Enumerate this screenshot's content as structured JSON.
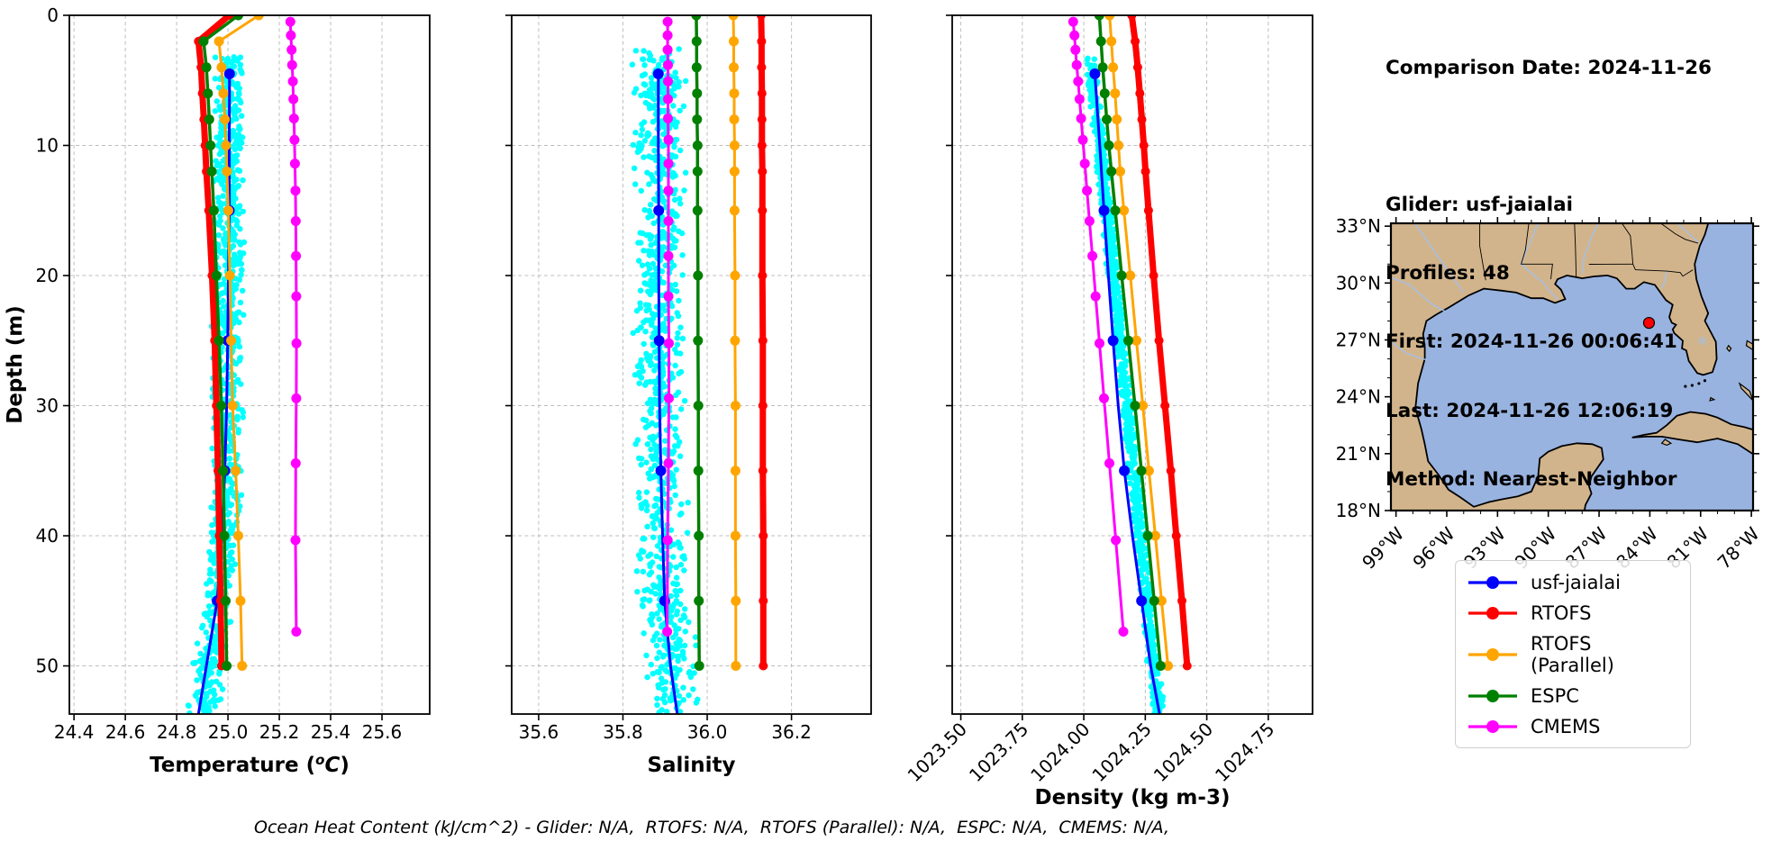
{
  "info_panel": {
    "comparison_date": "Comparison Date: 2024-11-26",
    "glider": "Glider: usf-jaialai",
    "profiles": "Profiles: 48",
    "first": "First: 2024-11-26 00:06:41",
    "last": "Last: 2024-11-26 12:06:19",
    "method": "Method: Nearest-Neighbor"
  },
  "footnote": "Ocean Heat Content (kJ/cm^2) - Glider: N/A,  RTOFS: N/A,  RTOFS (Parallel): N/A,  ESPC: N/A,  CMEMS: N/A,",
  "legend": {
    "items": [
      {
        "label": "usf-jaialai",
        "color": "#0000ff"
      },
      {
        "label": "RTOFS",
        "color": "#ff0000"
      },
      {
        "label": "RTOFS (Parallel)",
        "color": "#ffa500"
      },
      {
        "label": "ESPC",
        "color": "#008000"
      },
      {
        "label": "CMEMS",
        "color": "#ff00ff"
      }
    ]
  },
  "map": {
    "lat_ticks": [
      33,
      30,
      27,
      24,
      21,
      18
    ],
    "lat_labels": [
      "33°N",
      "30°N",
      "27°N",
      "24°N",
      "21°N",
      "18°N"
    ],
    "lon_ticks": [
      -99,
      -96,
      -93,
      -90,
      -87,
      -84,
      -81,
      -78
    ],
    "lon_labels": [
      "99°W",
      "96°W",
      "93°W",
      "90°W",
      "87°W",
      "84°W",
      "81°W",
      "78°W"
    ],
    "land_color": "#d2b48c",
    "ocean_color": "#99b3e0",
    "lake_color": "#b9b9b9",
    "river_color": "#a3c0e8",
    "marker": {
      "lat": 27.9,
      "lon": -84.05,
      "color": "#ff0000"
    }
  },
  "chart_data": [
    {
      "type": "line",
      "xlabel": "Temperature (°C)",
      "xlabel_parts": {
        "pre": "Temperature (",
        "sup": "o",
        "italic": "C",
        "post": ")"
      },
      "ylabel": "Depth (m)",
      "xlim": [
        24.382,
        25.786
      ],
      "ylim": [
        0,
        53.7
      ],
      "xticks": [
        24.4,
        24.6,
        24.8,
        25.0,
        25.2,
        25.4,
        25.6
      ],
      "xtick_labels": [
        "24.4",
        "24.6",
        "24.8",
        "25.0",
        "25.2",
        "25.4",
        "25.6"
      ],
      "yticks": [
        0,
        10,
        20,
        30,
        40,
        50
      ],
      "ytick_labels": [
        "0",
        "10",
        "20",
        "30",
        "40",
        "50"
      ],
      "scatter": {
        "name": "glider-raw-points",
        "color": "#00ffff",
        "n": 900,
        "depth_range": [
          3.2,
          53.7
        ],
        "half_width": 0.058,
        "center": [
          [
            3,
            25.008
          ],
          [
            20,
            25.003
          ],
          [
            35,
            24.995
          ],
          [
            45,
            24.962
          ],
          [
            53.7,
            24.9
          ]
        ]
      },
      "series": [
        {
          "name": "usf-jaialai",
          "color": "#0000ff",
          "width": 3,
          "marker_r": 6,
          "depths": [
            4.5,
            10,
            15,
            20,
            25,
            30,
            35,
            40,
            45,
            50,
            53.7
          ],
          "values": [
            25.006,
            25.005,
            25.005,
            25.002,
            24.999,
            24.995,
            24.988,
            24.976,
            24.958,
            24.916,
            24.885
          ],
          "marker_depths": [
            4.5,
            15,
            25,
            35,
            45
          ]
        },
        {
          "name": "RTOFS",
          "color": "#ff0000",
          "width": 7,
          "marker_r": 5,
          "depths": [
            0,
            2,
            4,
            6,
            8,
            10,
            12,
            15,
            20,
            25,
            30,
            35,
            40,
            45,
            50
          ],
          "values": [
            25.005,
            24.885,
            24.895,
            24.9,
            24.906,
            24.911,
            24.916,
            24.925,
            24.938,
            24.948,
            24.955,
            24.961,
            24.966,
            24.971,
            24.975
          ]
        },
        {
          "name": "RTOFS (Parallel)",
          "color": "#ffa500",
          "width": 3,
          "marker_r": 5.5,
          "depths": [
            0,
            2,
            4,
            6,
            8,
            10,
            12,
            15,
            20,
            25,
            30,
            35,
            40,
            45,
            50
          ],
          "values": [
            25.12,
            24.965,
            24.975,
            24.982,
            24.988,
            24.992,
            24.996,
            25.001,
            25.007,
            25.012,
            25.018,
            25.03,
            25.04,
            25.049,
            25.055
          ]
        },
        {
          "name": "ESPC",
          "color": "#008000",
          "width": 3.5,
          "marker_r": 5.5,
          "depths": [
            0,
            2,
            4,
            6,
            8,
            10,
            12,
            15,
            20,
            25,
            30,
            35,
            40,
            45,
            50
          ],
          "values": [
            25.04,
            24.905,
            24.916,
            24.922,
            24.927,
            24.932,
            24.937,
            24.945,
            24.955,
            24.965,
            24.974,
            24.981,
            24.986,
            24.991,
            24.995
          ]
        },
        {
          "name": "CMEMS",
          "color": "#ff00ff",
          "width": 3,
          "marker_r": 5.5,
          "depths": [
            0.49,
            1.54,
            2.65,
            3.82,
            5.08,
            6.44,
            7.93,
            9.57,
            11.4,
            13.47,
            15.81,
            18.5,
            21.6,
            25.21,
            29.44,
            34.43,
            40.34,
            47.37
          ],
          "values": [
            25.243,
            25.245,
            25.248,
            25.25,
            25.253,
            25.255,
            25.257,
            25.259,
            25.261,
            25.263,
            25.264,
            25.265,
            25.266,
            25.267,
            25.266,
            25.264,
            25.263,
            25.266
          ]
        }
      ]
    },
    {
      "type": "line",
      "xlabel": "Salinity",
      "xlim": [
        35.536,
        36.389
      ],
      "ylim": [
        0,
        53.7
      ],
      "xticks": [
        35.6,
        35.8,
        36.0,
        36.2
      ],
      "xtick_labels": [
        "35.6",
        "35.8",
        "36.0",
        "36.2"
      ],
      "yticks": [
        0,
        10,
        20,
        30,
        40,
        50
      ],
      "scatter": {
        "name": "glider-raw-points",
        "color": "#00ffff",
        "n": 900,
        "depth_range": [
          2.5,
          53.7
        ],
        "half_width": 0.058,
        "center": [
          [
            2.5,
            35.885
          ],
          [
            35,
            35.888
          ],
          [
            45,
            35.897
          ],
          [
            53.7,
            35.928
          ]
        ]
      },
      "series": [
        {
          "name": "usf-jaialai",
          "color": "#0000ff",
          "width": 3,
          "marker_r": 6,
          "depths": [
            4.5,
            10,
            15,
            20,
            25,
            30,
            35,
            40,
            45,
            50,
            53.7
          ],
          "values": [
            35.884,
            35.884,
            35.885,
            35.885,
            35.886,
            35.887,
            35.89,
            35.894,
            35.899,
            35.913,
            35.929
          ],
          "marker_depths": [
            4.5,
            15,
            25,
            35,
            45
          ]
        },
        {
          "name": "RTOFS",
          "color": "#ff0000",
          "width": 7,
          "marker_r": 5,
          "depths": [
            0,
            2,
            4,
            6,
            8,
            10,
            12,
            15,
            20,
            25,
            30,
            35,
            40,
            45,
            50
          ],
          "values": [
            36.128,
            36.129,
            36.129,
            36.13,
            36.13,
            36.13,
            36.131,
            36.131,
            36.131,
            36.132,
            36.132,
            36.132,
            36.133,
            36.133,
            36.133
          ]
        },
        {
          "name": "RTOFS (Parallel)",
          "color": "#ffa500",
          "width": 3,
          "marker_r": 5.5,
          "depths": [
            0,
            2,
            4,
            6,
            8,
            10,
            12,
            15,
            20,
            25,
            30,
            35,
            40,
            45,
            50
          ],
          "values": [
            36.062,
            36.063,
            36.063,
            36.064,
            36.064,
            36.065,
            36.065,
            36.065,
            36.066,
            36.066,
            36.067,
            36.067,
            36.067,
            36.068,
            36.068
          ]
        },
        {
          "name": "ESPC",
          "color": "#008000",
          "width": 3.5,
          "marker_r": 5.5,
          "depths": [
            0,
            2,
            4,
            6,
            8,
            10,
            12,
            15,
            20,
            25,
            30,
            35,
            40,
            45,
            50
          ],
          "values": [
            35.974,
            35.975,
            35.975,
            35.976,
            35.976,
            35.977,
            35.977,
            35.977,
            35.978,
            35.978,
            35.979,
            35.979,
            35.98,
            35.98,
            35.981
          ]
        },
        {
          "name": "CMEMS",
          "color": "#ff00ff",
          "width": 3,
          "marker_r": 5.5,
          "depths": [
            0.49,
            1.54,
            2.65,
            3.82,
            5.08,
            6.44,
            7.93,
            9.57,
            11.4,
            13.47,
            15.81,
            18.5,
            21.6,
            25.21,
            29.44,
            34.43,
            40.34,
            47.37
          ],
          "values": [
            35.906,
            35.906,
            35.906,
            35.907,
            35.907,
            35.907,
            35.907,
            35.908,
            35.908,
            35.908,
            35.908,
            35.908,
            35.908,
            35.909,
            35.909,
            35.908,
            35.906,
            35.905
          ]
        }
      ]
    },
    {
      "type": "line",
      "xlabel": "Density (kg m-3)",
      "xlim": [
        1023.465,
        1024.93
      ],
      "ylim": [
        0,
        53.7
      ],
      "xticks": [
        1023.5,
        1023.75,
        1024.0,
        1024.25,
        1024.5,
        1024.75
      ],
      "xtick_labels": [
        "1023.50",
        "1023.75",
        "1024.00",
        "1024.25",
        "1024.50",
        "1024.75"
      ],
      "xtick_rotation": 45,
      "yticks": [
        0,
        10,
        20,
        30,
        40,
        50
      ],
      "scatter": {
        "name": "glider-raw-points",
        "color": "#00ffff",
        "n": 900,
        "depth_range": [
          3.2,
          53.7
        ],
        "half_width": 0.024,
        "center": [
          [
            3,
            1024.028
          ],
          [
            53.7,
            1024.305
          ]
        ]
      },
      "series": [
        {
          "name": "usf-jaialai",
          "color": "#0000ff",
          "width": 3,
          "marker_r": 6,
          "depths": [
            4.5,
            10,
            15,
            20,
            25,
            30,
            35,
            40,
            45,
            50,
            53.7
          ],
          "values": [
            1024.045,
            1024.065,
            1024.082,
            1024.1,
            1024.119,
            1024.14,
            1024.165,
            1024.198,
            1024.235,
            1024.272,
            1024.308
          ],
          "marker_depths": [
            4.5,
            15,
            25,
            35,
            45
          ]
        },
        {
          "name": "RTOFS",
          "color": "#ff0000",
          "width": 7,
          "marker_r": 5,
          "depths": [
            0,
            2,
            4,
            6,
            8,
            10,
            12,
            15,
            20,
            25,
            30,
            35,
            40,
            45,
            50
          ],
          "values": [
            1024.195,
            1024.209,
            1024.219,
            1024.228,
            1024.236,
            1024.244,
            1024.251,
            1024.263,
            1024.284,
            1024.306,
            1024.33,
            1024.354,
            1024.376,
            1024.399,
            1024.42
          ]
        },
        {
          "name": "RTOFS (Parallel)",
          "color": "#ffa500",
          "width": 3,
          "marker_r": 5.5,
          "depths": [
            0,
            2,
            4,
            6,
            8,
            10,
            12,
            15,
            20,
            25,
            30,
            35,
            40,
            45,
            50
          ],
          "values": [
            1024.105,
            1024.112,
            1024.119,
            1024.127,
            1024.134,
            1024.141,
            1024.148,
            1024.163,
            1024.189,
            1024.214,
            1024.24,
            1024.265,
            1024.291,
            1024.316,
            1024.342
          ]
        },
        {
          "name": "ESPC",
          "color": "#008000",
          "width": 3.5,
          "marker_r": 5.5,
          "depths": [
            0,
            2,
            4,
            6,
            8,
            10,
            12,
            15,
            20,
            25,
            30,
            35,
            40,
            45,
            50
          ],
          "values": [
            1024.063,
            1024.07,
            1024.077,
            1024.085,
            1024.093,
            1024.102,
            1024.112,
            1024.128,
            1024.154,
            1024.181,
            1024.208,
            1024.234,
            1024.26,
            1024.286,
            1024.312
          ]
        },
        {
          "name": "CMEMS",
          "color": "#ff00ff",
          "width": 3,
          "marker_r": 5.5,
          "depths": [
            0.49,
            1.54,
            2.65,
            3.82,
            5.08,
            6.44,
            7.93,
            9.57,
            11.4,
            13.47,
            15.81,
            18.5,
            21.6,
            25.21,
            29.44,
            34.43,
            40.34,
            47.37
          ],
          "values": [
            1023.957,
            1023.962,
            1023.966,
            1023.971,
            1023.977,
            1023.983,
            1023.989,
            1023.996,
            1024.004,
            1024.013,
            1024.023,
            1024.035,
            1024.048,
            1024.064,
            1024.082,
            1024.104,
            1024.13,
            1024.161
          ]
        }
      ]
    }
  ]
}
